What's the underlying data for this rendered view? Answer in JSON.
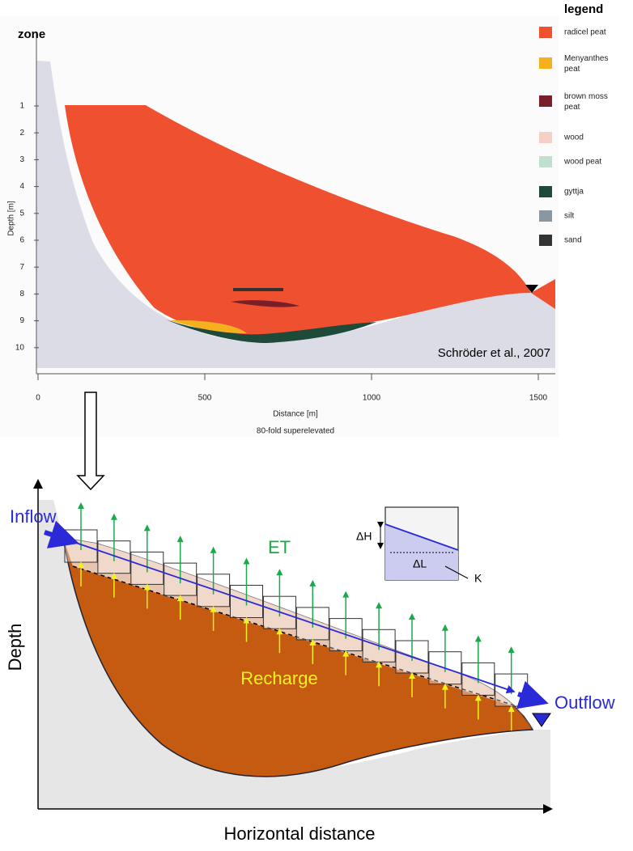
{
  "top": {
    "zone_label": "zone",
    "y_ticks": [
      1,
      2,
      3,
      4,
      5,
      6,
      7,
      8,
      9,
      10
    ],
    "y_label": "Depth [m]",
    "x_ticks": [
      0,
      500,
      1000,
      1500
    ],
    "x_label": "Distance [m]",
    "note": "80-fold superelevated",
    "citation": "Schröder et al., 2007",
    "legend": {
      "title": "legend",
      "items": [
        {
          "label": "radicel peat",
          "color": "#ee5030"
        },
        {
          "label": "Menyanthes peat",
          "color": "#f5b020"
        },
        {
          "label": "brown moss peat",
          "color": "#7a1f2a"
        },
        {
          "label": "wood",
          "color": "#f3d0c8"
        },
        {
          "label": "wood peat",
          "color": "#bfe0d0"
        },
        {
          "label": "gyttja",
          "color": "#1e4a3a"
        },
        {
          "label": "silt",
          "color": "#8a96a0"
        },
        {
          "label": "sand",
          "color": "#333333"
        }
      ]
    }
  },
  "bottom": {
    "inflow": "Inflow",
    "outflow": "Outflow",
    "et": "ET",
    "recharge": "Recharge",
    "y_label": "Depth",
    "x_label": "Horizontal distance",
    "inset": {
      "dh": "ΔH",
      "dl": "ΔL",
      "k": "K"
    }
  }
}
